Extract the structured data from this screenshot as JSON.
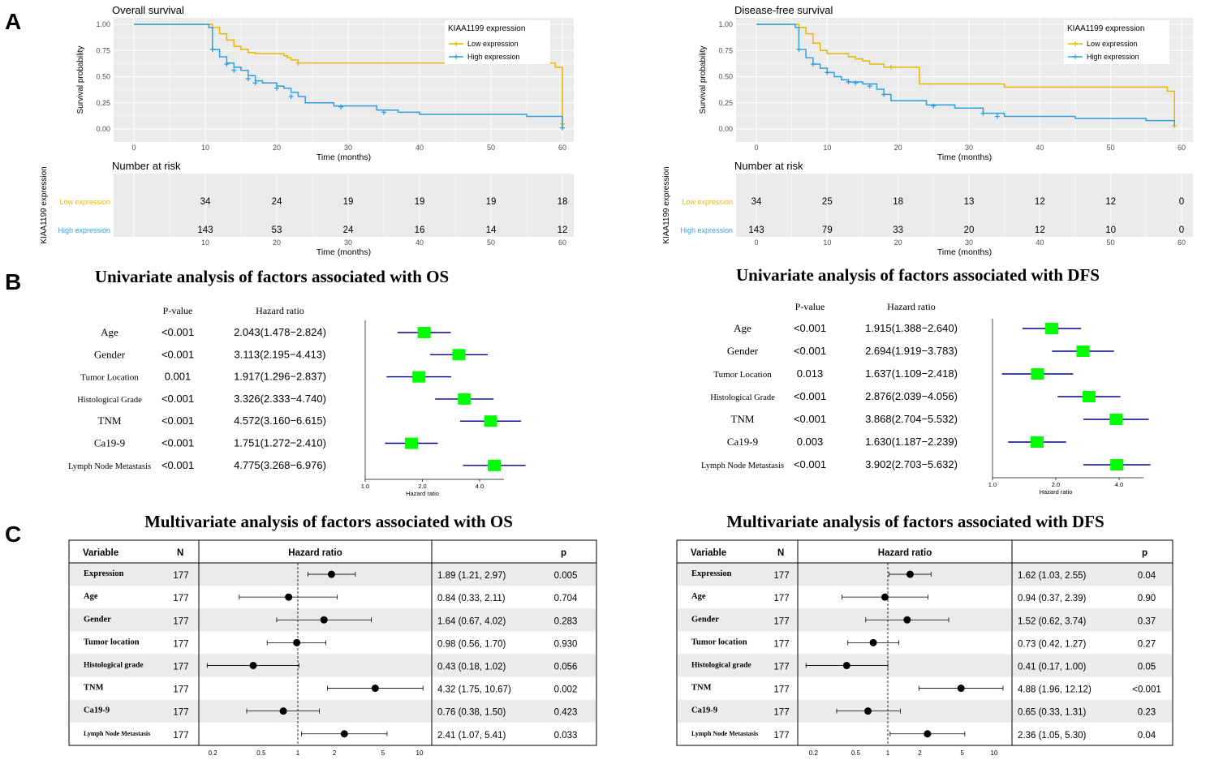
{
  "panel_labels": [
    "A",
    "B",
    "C"
  ],
  "colors": {
    "low": "#E7B800",
    "high": "#2E9FDF",
    "panel_bg": "#EBEBEB",
    "grid": "#FFFFFF",
    "ci_line": "#00008B",
    "box": "#00FF00",
    "row_shade": "#EBEBEB"
  },
  "chart_data": [
    {
      "type": "line",
      "id": "km_os",
      "title": "Overall survival",
      "xlabel": "Time (months)",
      "ylabel": "Survival probability",
      "xlim": [
        0,
        60
      ],
      "ylim": [
        0,
        1
      ],
      "x_ticks": [
        0,
        10,
        20,
        30,
        40,
        50,
        60
      ],
      "y_ticks": [
        "0.00",
        "0.25",
        "0.50",
        "0.75",
        "1.00"
      ],
      "legend_title": "KIAA1199 expression",
      "series": [
        {
          "name": "Low expression",
          "color": "#E7B800",
          "steps": [
            [
              0,
              1.0
            ],
            [
              11,
              0.97
            ],
            [
              12,
              0.91
            ],
            [
              13,
              0.85
            ],
            [
              14,
              0.79
            ],
            [
              15,
              0.76
            ],
            [
              16,
              0.73
            ],
            [
              17,
              0.72
            ],
            [
              21,
              0.7
            ],
            [
              21.5,
              0.68
            ],
            [
              22,
              0.66
            ],
            [
              23,
              0.63
            ],
            [
              59,
              0.59
            ],
            [
              60,
              0.0
            ]
          ],
          "censors": [
            [
              23,
              0.63
            ],
            [
              60,
              0.05
            ]
          ]
        },
        {
          "name": "High expression",
          "color": "#2E9FDF",
          "steps": [
            [
              0,
              1.0
            ],
            [
              10.5,
              0.97
            ],
            [
              11,
              0.76
            ],
            [
              12,
              0.69
            ],
            [
              13,
              0.63
            ],
            [
              14,
              0.59
            ],
            [
              15,
              0.56
            ],
            [
              16,
              0.51
            ],
            [
              17,
              0.46
            ],
            [
              18,
              0.44
            ],
            [
              20,
              0.41
            ],
            [
              21,
              0.39
            ],
            [
              22,
              0.35
            ],
            [
              23,
              0.31
            ],
            [
              24,
              0.25
            ],
            [
              28,
              0.22
            ],
            [
              34,
              0.18
            ],
            [
              37,
              0.16
            ],
            [
              40,
              0.14
            ],
            [
              55,
              0.12
            ],
            [
              60,
              0.03
            ]
          ],
          "censors": [
            [
              11,
              0.76
            ],
            [
              13,
              0.62
            ],
            [
              14,
              0.56
            ],
            [
              16,
              0.48
            ],
            [
              17,
              0.44
            ],
            [
              20,
              0.39
            ],
            [
              22,
              0.31
            ],
            [
              29,
              0.21
            ],
            [
              35,
              0.16
            ],
            [
              60,
              0.01
            ]
          ]
        }
      ],
      "risk_table": {
        "title": "Number at risk",
        "xlabel": "Time (months)",
        "ylabel": "KIAA1199 expression",
        "times": [
          10,
          20,
          30,
          40,
          50,
          60
        ],
        "rows": [
          {
            "label": "Low expression",
            "color": "#E7B800",
            "values": [
              "34",
              "24",
              "19",
              "19",
              "19",
              "18"
            ]
          },
          {
            "label": "High expression",
            "color": "#2E9FDF",
            "values": [
              "143",
              "53",
              "24",
              "16",
              "14",
              "12"
            ]
          }
        ]
      }
    },
    {
      "type": "line",
      "id": "km_dfs",
      "title": "Disease-free survival",
      "xlabel": "Time (months)",
      "ylabel": "Survival probability",
      "xlim": [
        0,
        60
      ],
      "ylim": [
        0,
        1
      ],
      "x_ticks": [
        0,
        10,
        20,
        30,
        40,
        50,
        60
      ],
      "y_ticks": [
        "0.00",
        "0.25",
        "0.50",
        "0.75",
        "1.00"
      ],
      "legend_title": "KIAA1199 expression",
      "series": [
        {
          "name": "Low expression",
          "color": "#E7B800",
          "steps": [
            [
              0,
              1.0
            ],
            [
              6,
              0.97
            ],
            [
              7,
              0.91
            ],
            [
              8,
              0.82
            ],
            [
              9,
              0.75
            ],
            [
              10,
              0.72
            ],
            [
              13,
              0.69
            ],
            [
              14,
              0.67
            ],
            [
              15,
              0.65
            ],
            [
              16,
              0.62
            ],
            [
              18,
              0.59
            ],
            [
              23,
              0.43
            ],
            [
              35,
              0.4
            ],
            [
              58,
              0.36
            ],
            [
              59,
              0.03
            ]
          ],
          "censors": [
            [
              19,
              0.59
            ],
            [
              59,
              0.03
            ]
          ]
        },
        {
          "name": "High expression",
          "color": "#2E9FDF",
          "steps": [
            [
              0,
              1.0
            ],
            [
              5.5,
              0.97
            ],
            [
              6,
              0.76
            ],
            [
              7,
              0.68
            ],
            [
              8,
              0.62
            ],
            [
              9,
              0.58
            ],
            [
              10,
              0.54
            ],
            [
              11,
              0.5
            ],
            [
              12,
              0.47
            ],
            [
              13,
              0.45
            ],
            [
              15,
              0.43
            ],
            [
              17,
              0.38
            ],
            [
              18,
              0.33
            ],
            [
              19,
              0.27
            ],
            [
              24,
              0.23
            ],
            [
              28,
              0.2
            ],
            [
              32,
              0.15
            ],
            [
              35,
              0.12
            ],
            [
              45,
              0.1
            ],
            [
              55,
              0.08
            ],
            [
              59,
              0.03
            ]
          ],
          "censors": [
            [
              6,
              0.76
            ],
            [
              8,
              0.62
            ],
            [
              10,
              0.54
            ],
            [
              13,
              0.45
            ],
            [
              14,
              0.44
            ],
            [
              16,
              0.41
            ],
            [
              18,
              0.33
            ],
            [
              25,
              0.22
            ],
            [
              32,
              0.15
            ],
            [
              34,
              0.12
            ]
          ]
        }
      ],
      "risk_table": {
        "title": "Number at risk",
        "xlabel": "Time (months)",
        "ylabel": "KIAA1199 expression",
        "times": [
          0,
          10,
          20,
          30,
          40,
          50,
          60
        ],
        "rows": [
          {
            "label": "Low expression",
            "color": "#E7B800",
            "values": [
              "34",
              "25",
              "18",
              "13",
              "12",
              "12",
              "0"
            ]
          },
          {
            "label": "High expression",
            "color": "#2E9FDF",
            "values": [
              "143",
              "79",
              "33",
              "20",
              "12",
              "10",
              "0"
            ]
          }
        ]
      }
    },
    {
      "type": "forest",
      "id": "uni_os",
      "title": "Univariate analysis of factors associated with OS",
      "col_p": "P-value",
      "col_hr": "Hazard ratio",
      "xlabel": "Hazard ratio",
      "x_ticks": [
        "1.0",
        "2.0",
        "4.0"
      ],
      "rows": [
        {
          "label": "Age",
          "p": "<0.001",
          "hr_text": "2.043(1.478−2.824)",
          "hr": 2.043,
          "lo": 1.478,
          "hi": 2.824
        },
        {
          "label": "Gender",
          "p": "<0.001",
          "hr_text": "3.113(2.195−4.413)",
          "hr": 3.113,
          "lo": 2.195,
          "hi": 4.413
        },
        {
          "label": "Tumor Location",
          "p": "0.001",
          "hr_text": "1.917(1.296−2.837)",
          "hr": 1.917,
          "lo": 1.296,
          "hi": 2.837
        },
        {
          "label": "Histological Grade",
          "p": "<0.001",
          "hr_text": "3.326(2.333−4.740)",
          "hr": 3.326,
          "lo": 2.333,
          "hi": 4.74
        },
        {
          "label": "TNM",
          "p": "<0.001",
          "hr_text": "4.572(3.160−6.615)",
          "hr": 4.572,
          "lo": 3.16,
          "hi": 6.615
        },
        {
          "label": "Ca19-9",
          "p": "<0.001",
          "hr_text": "1.751(1.272−2.410)",
          "hr": 1.751,
          "lo": 1.272,
          "hi": 2.41
        },
        {
          "label": "Lymph Node Metastasis",
          "p": "<0.001",
          "hr_text": "4.775(3.268−6.976)",
          "hr": 4.775,
          "lo": 3.268,
          "hi": 6.976
        }
      ]
    },
    {
      "type": "forest",
      "id": "uni_dfs",
      "title": "Univariate analysis of factors associated with DFS",
      "col_p": "P-value",
      "col_hr": "Hazard ratio",
      "xlabel": "Hazard ratio",
      "x_ticks": [
        "1.0",
        "2.0",
        "4.0"
      ],
      "rows": [
        {
          "label": "Age",
          "p": "<0.001",
          "hr_text": "1.915(1.388−2.640)",
          "hr": 1.915,
          "lo": 1.388,
          "hi": 2.64
        },
        {
          "label": "Gender",
          "p": "<0.001",
          "hr_text": "2.694(1.919−3.783)",
          "hr": 2.694,
          "lo": 1.919,
          "hi": 3.783
        },
        {
          "label": "Tumor Location",
          "p": "0.013",
          "hr_text": "1.637(1.109−2.418)",
          "hr": 1.637,
          "lo": 1.109,
          "hi": 2.418
        },
        {
          "label": "Histological Grade",
          "p": "<0.001",
          "hr_text": "2.876(2.039−4.056)",
          "hr": 2.876,
          "lo": 2.039,
          "hi": 4.056
        },
        {
          "label": "TNM",
          "p": "<0.001",
          "hr_text": "3.868(2.704−5.532)",
          "hr": 3.868,
          "lo": 2.704,
          "hi": 5.532
        },
        {
          "label": "Ca19-9",
          "p": "0.003",
          "hr_text": "1.630(1.187−2.239)",
          "hr": 1.63,
          "lo": 1.187,
          "hi": 2.239
        },
        {
          "label": "Lymph Node Metastasis",
          "p": "<0.001",
          "hr_text": "3.902(2.703−5.632)",
          "hr": 3.902,
          "lo": 2.703,
          "hi": 5.632
        }
      ]
    },
    {
      "type": "forest_table",
      "id": "multi_os",
      "title": "Multivariate analysis of factors associated with OS",
      "headers": {
        "variable": "Variable",
        "n": "N",
        "hr": "Hazard ratio",
        "p": "p"
      },
      "x_ticks": [
        "0.2",
        "0.5",
        "1",
        "2",
        "5",
        "10"
      ],
      "rows": [
        {
          "label": "Expression",
          "n": "177",
          "hr_text": "1.89 (1.21, 2.97)",
          "p": "0.005",
          "hr": 1.89,
          "lo": 1.21,
          "hi": 2.97
        },
        {
          "label": "Age",
          "n": "177",
          "hr_text": "0.84 (0.33, 2.11)",
          "p": "0.704",
          "hr": 0.84,
          "lo": 0.33,
          "hi": 2.11
        },
        {
          "label": "Gender",
          "n": "177",
          "hr_text": "1.64 (0.67, 4.02)",
          "p": "0.283",
          "hr": 1.64,
          "lo": 0.67,
          "hi": 4.02
        },
        {
          "label": "Tumor location",
          "n": "177",
          "hr_text": "0.98 (0.56, 1.70)",
          "p": "0.930",
          "hr": 0.98,
          "lo": 0.56,
          "hi": 1.7
        },
        {
          "label": "Histological grade",
          "n": "177",
          "hr_text": "0.43 (0.18, 1.02)",
          "p": "0.056",
          "hr": 0.43,
          "lo": 0.18,
          "hi": 1.02
        },
        {
          "label": "TNM",
          "n": "177",
          "hr_text": "4.32 (1.75, 10.67)",
          "p": "0.002",
          "hr": 4.32,
          "lo": 1.75,
          "hi": 10.67
        },
        {
          "label": "Ca19-9",
          "n": "177",
          "hr_text": "0.76 (0.38, 1.50)",
          "p": "0.423",
          "hr": 0.76,
          "lo": 0.38,
          "hi": 1.5
        },
        {
          "label": "Lymph Node Metastasis",
          "n": "177",
          "hr_text": "2.41 (1.07, 5.41)",
          "p": "0.033",
          "hr": 2.41,
          "lo": 1.07,
          "hi": 5.41
        }
      ]
    },
    {
      "type": "forest_table",
      "id": "multi_dfs",
      "title": "Multivariate analysis of factors associated with DFS",
      "headers": {
        "variable": "Variable",
        "n": "N",
        "hr": "Hazard ratio",
        "p": "p"
      },
      "x_ticks": [
        "0.2",
        "0.5",
        "1",
        "2",
        "5",
        "10"
      ],
      "rows": [
        {
          "label": "Expression",
          "n": "177",
          "hr_text": "1.62 (1.03, 2.55)",
          "p": "0.04",
          "hr": 1.62,
          "lo": 1.03,
          "hi": 2.55
        },
        {
          "label": "Age",
          "n": "177",
          "hr_text": "0.94 (0.37, 2.39)",
          "p": "0.90",
          "hr": 0.94,
          "lo": 0.37,
          "hi": 2.39
        },
        {
          "label": "Gender",
          "n": "177",
          "hr_text": "1.52 (0.62, 3.74)",
          "p": "0.37",
          "hr": 1.52,
          "lo": 0.62,
          "hi": 3.74
        },
        {
          "label": "Tumor location",
          "n": "177",
          "hr_text": "0.73 (0.42, 1.27)",
          "p": "0.27",
          "hr": 0.73,
          "lo": 0.42,
          "hi": 1.27
        },
        {
          "label": "Histological grade",
          "n": "177",
          "hr_text": "0.41 (0.17, 1.00)",
          "p": "0.05",
          "hr": 0.41,
          "lo": 0.17,
          "hi": 1.0
        },
        {
          "label": "TNM",
          "n": "177",
          "hr_text": "4.88 (1.96, 12.12)",
          "p": "<0.001",
          "hr": 4.88,
          "lo": 1.96,
          "hi": 12.12
        },
        {
          "label": "Ca19-9",
          "n": "177",
          "hr_text": "0.65 (0.33, 1.31)",
          "p": "0.23",
          "hr": 0.65,
          "lo": 0.33,
          "hi": 1.31
        },
        {
          "label": "Lymph Node Metastasis",
          "n": "177",
          "hr_text": "2.36 (1.05, 5.30)",
          "p": "0.04",
          "hr": 2.36,
          "lo": 1.05,
          "hi": 5.3
        }
      ]
    }
  ]
}
